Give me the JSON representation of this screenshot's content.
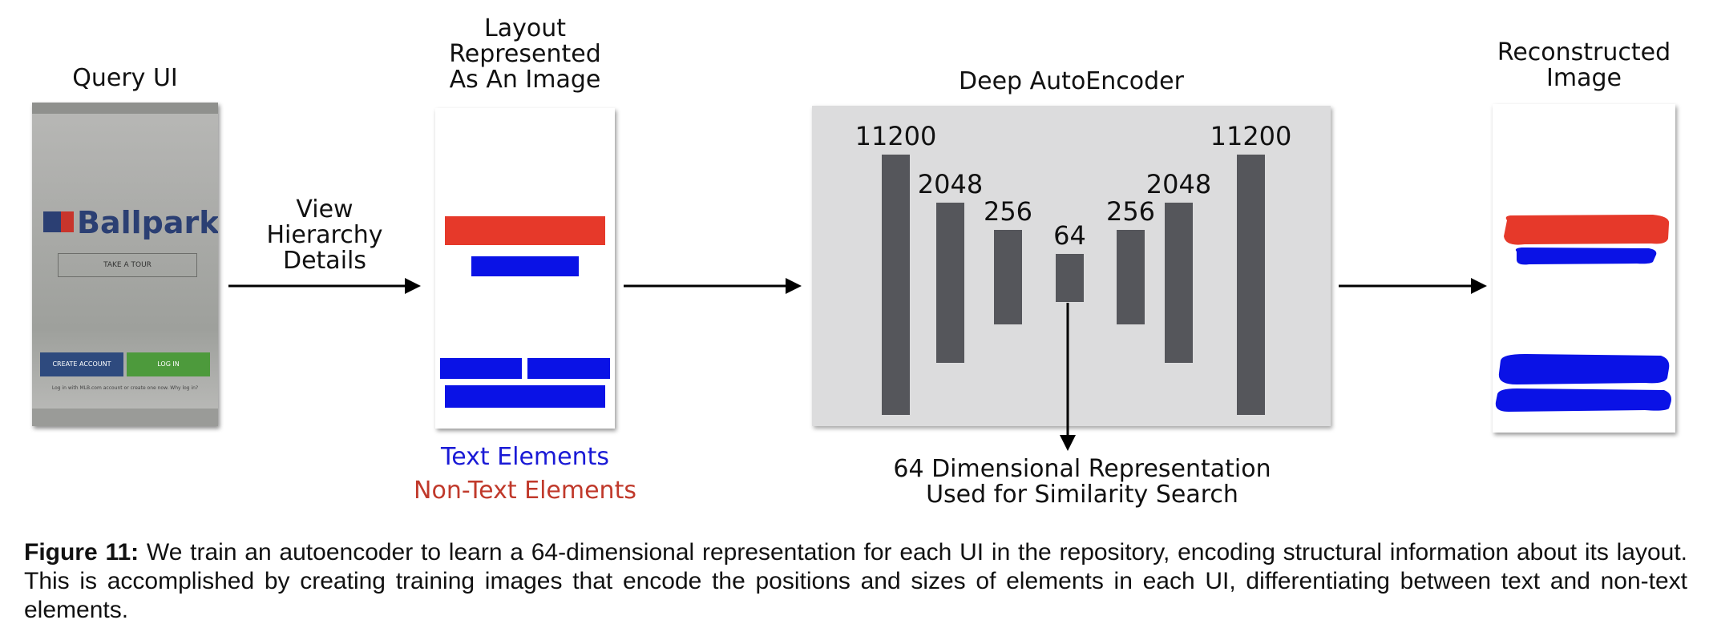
{
  "labels": {
    "query_ui": "Query UI",
    "layout_title_1": "Layout",
    "layout_title_2": "Represented",
    "layout_title_3": "As An Image",
    "ae_title": "Deep AutoEncoder",
    "recon_title_1": "Reconstructed",
    "recon_title_2": "Image",
    "view_1": "View",
    "view_2": "Hierarchy",
    "view_3": "Details",
    "text_elements": "Text Elements",
    "non_text_elements": "Non-Text Elements",
    "rep_1": "64 Dimensional Representation",
    "rep_2": "Used for Similarity Search"
  },
  "phone": {
    "brand": "Ballpark",
    "tour_button": "TAKE A TOUR",
    "create_account": "CREATE ACCOUNT",
    "log_in": "LOG IN",
    "small_text": "Log in with MLB.com account or create one now. Why log in?"
  },
  "layers": [
    {
      "label": "11200"
    },
    {
      "label": "2048"
    },
    {
      "label": "256"
    },
    {
      "label": "64"
    },
    {
      "label": "256"
    },
    {
      "label": "2048"
    },
    {
      "label": "11200"
    }
  ],
  "caption": {
    "bold": "Figure 11:",
    "text": " We train an autoencoder to learn a 64-dimensional representation for each UI in the repository, encoding structural information about its layout.  This is accomplished by creating training images that encode the positions and sizes of elements in each UI, differentiating between text and non-text elements."
  },
  "colors": {
    "text_element": "#0a12e6",
    "non_text_element": "#e6392a",
    "text_label": "#1a1ad6",
    "non_text_label": "#c0392b",
    "layer_bar": "#55565b",
    "ae_background": "#dcdcdd",
    "phone_blue_button": "#2e4a7e",
    "phone_green_button": "#4d9a3c"
  },
  "icons": [
    "arrow-right-icon",
    "arrow-down-icon",
    "mlb-logo-icon"
  ]
}
